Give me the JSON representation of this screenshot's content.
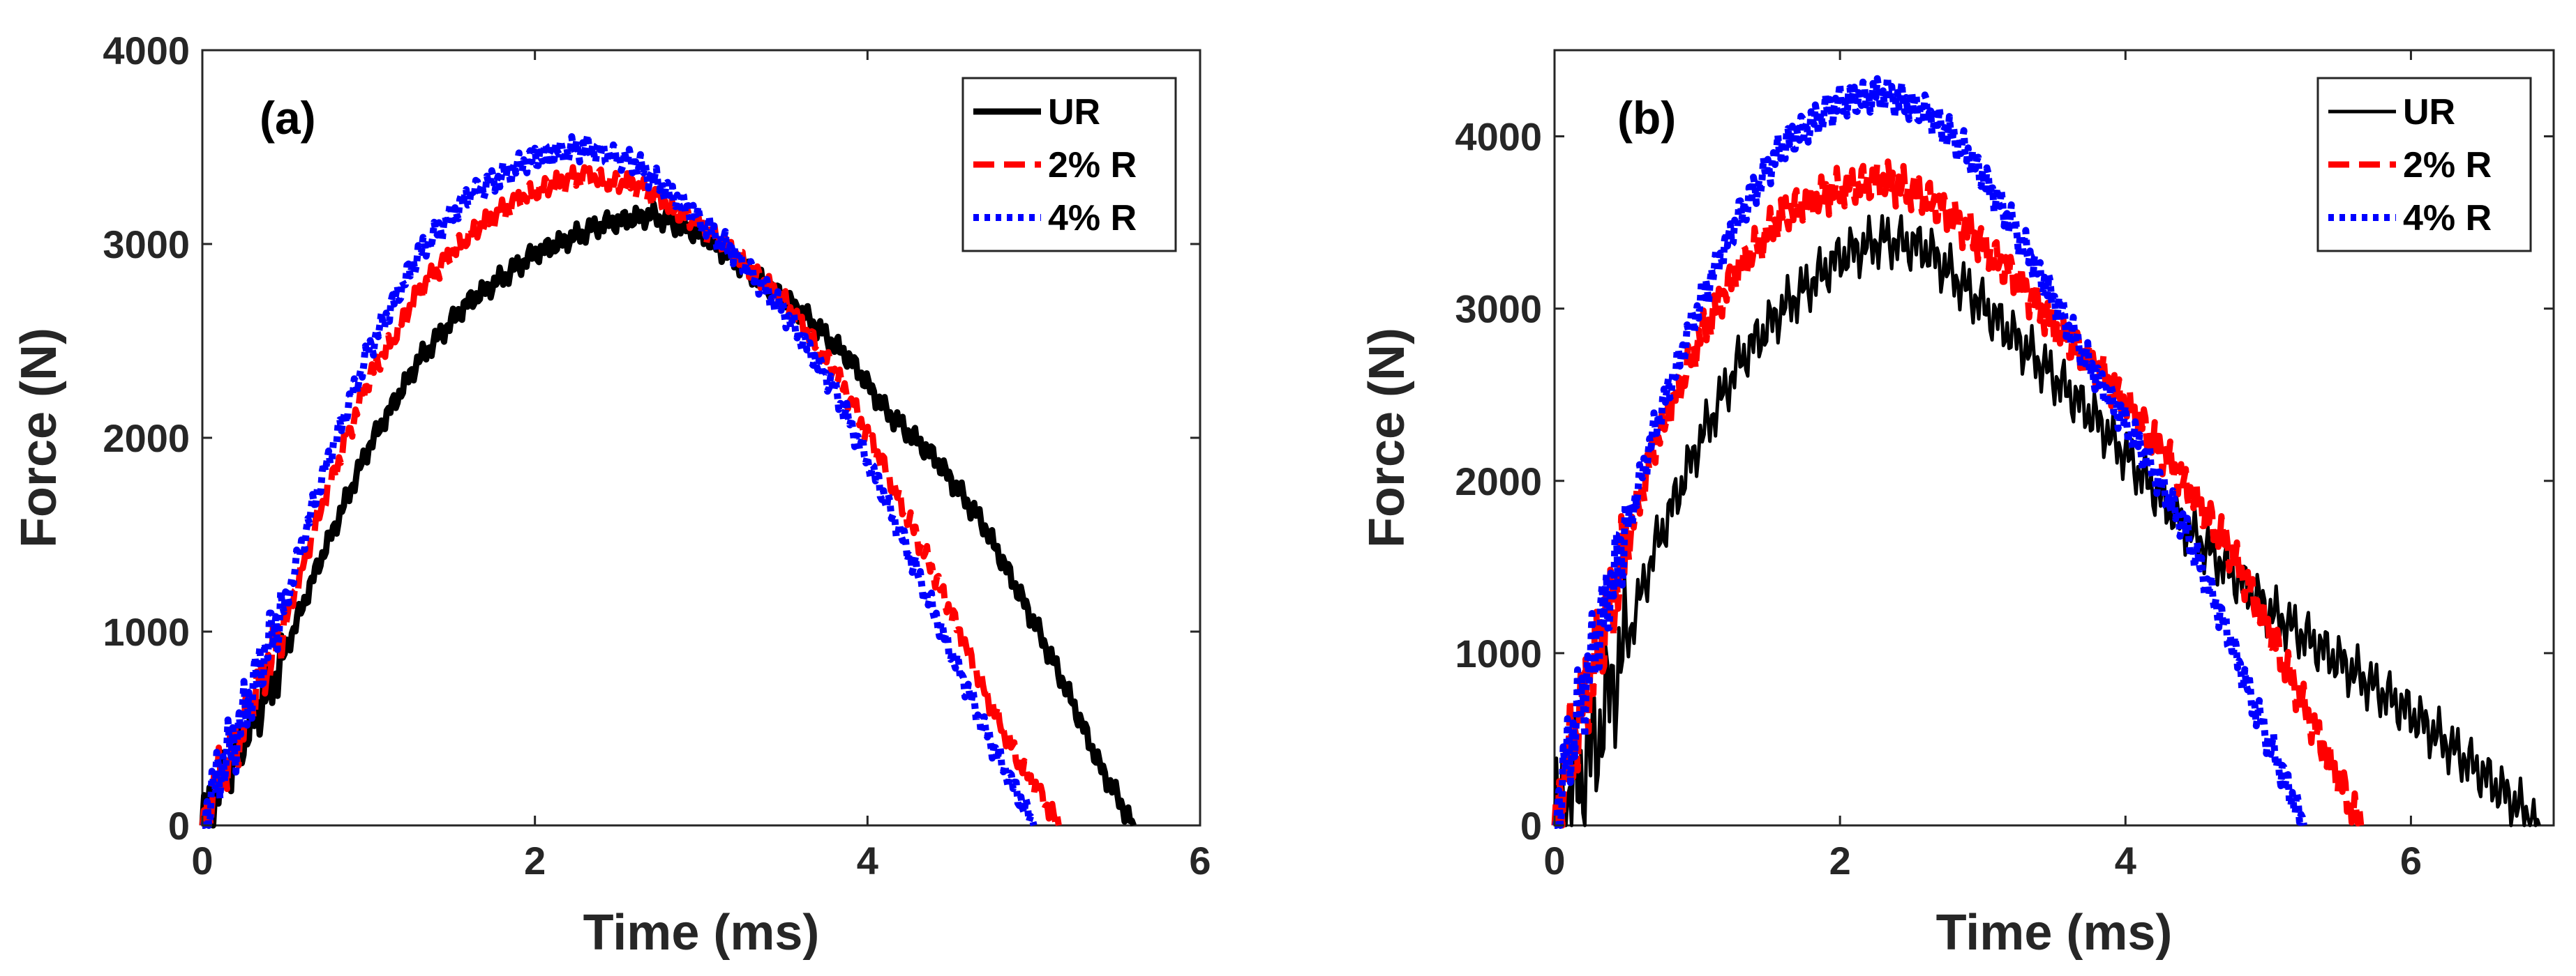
{
  "chart_data": [
    {
      "type": "line",
      "panel_label": "(a)",
      "xlabel": "Time (ms)",
      "ylabel": "Force (N)",
      "xlim": [
        0,
        6
      ],
      "ylim": [
        0,
        4000
      ],
      "xticks": [
        0,
        2,
        4,
        6
      ],
      "yticks": [
        0,
        1000,
        2000,
        3000,
        4000
      ],
      "grid": false,
      "legend_position": "top-right",
      "series": [
        {
          "name": "UR",
          "color": "#000000",
          "style": "solid",
          "width": 9,
          "noise": 40,
          "x": [
            0,
            0.1,
            0.2,
            0.3,
            0.4,
            0.5,
            0.7,
            1.0,
            1.3,
            1.6,
            2.0,
            2.4,
            2.7,
            3.0,
            3.3,
            3.6,
            3.9,
            4.1,
            4.4,
            4.7,
            5.0,
            5.2,
            5.4,
            5.6
          ],
          "y": [
            0,
            200,
            350,
            550,
            700,
            900,
            1350,
            1950,
            2400,
            2700,
            2950,
            3100,
            3150,
            3050,
            2850,
            2650,
            2400,
            2150,
            1900,
            1550,
            1050,
            700,
            300,
            0
          ]
        },
        {
          "name": "2% R",
          "color": "#ff0000",
          "style": "dashed",
          "width": 9,
          "noise": 40,
          "x": [
            0,
            0.1,
            0.2,
            0.3,
            0.4,
            0.5,
            0.7,
            1.0,
            1.3,
            1.6,
            2.0,
            2.3,
            2.6,
            2.9,
            3.2,
            3.5,
            3.8,
            4.1,
            4.4,
            4.7,
            4.9,
            5.15
          ],
          "y": [
            0,
            250,
            400,
            650,
            850,
            1050,
            1600,
            2300,
            2750,
            3050,
            3280,
            3350,
            3300,
            3150,
            2950,
            2700,
            2350,
            1850,
            1300,
            700,
            350,
            0
          ]
        },
        {
          "name": "4% R",
          "color": "#0000ff",
          "style": "dotted",
          "width": 10,
          "noise": 45,
          "x": [
            0,
            0.1,
            0.2,
            0.3,
            0.4,
            0.5,
            0.7,
            1.0,
            1.3,
            1.6,
            2.0,
            2.3,
            2.6,
            2.9,
            3.2,
            3.5,
            3.8,
            4.1,
            4.4,
            4.7,
            4.85,
            5.0
          ],
          "y": [
            0,
            280,
            450,
            700,
            950,
            1150,
            1750,
            2450,
            2950,
            3250,
            3450,
            3500,
            3420,
            3200,
            2950,
            2650,
            2250,
            1700,
            1100,
            500,
            250,
            0
          ]
        }
      ]
    },
    {
      "type": "line",
      "panel_label": "(b)",
      "xlabel": "Time (ms)",
      "ylabel": "Force (N)",
      "xlim": [
        0,
        7
      ],
      "ylim": [
        0,
        4500
      ],
      "xticks": [
        0,
        2,
        4,
        6
      ],
      "yticks": [
        0,
        1000,
        2000,
        3000,
        4000
      ],
      "grid": false,
      "legend_position": "top-right",
      "series": [
        {
          "name": "UR",
          "color": "#000000",
          "style": "solid",
          "width": 5,
          "noise": 110,
          "x": [
            0,
            0.1,
            0.2,
            0.3,
            0.4,
            0.5,
            0.7,
            1.0,
            1.3,
            1.6,
            2.0,
            2.3,
            2.6,
            2.9,
            3.2,
            3.5,
            3.8,
            4.1,
            4.4,
            4.7,
            5.0,
            5.5,
            6.0,
            6.5,
            6.9
          ],
          "y": [
            0,
            150,
            300,
            500,
            800,
            1050,
            1600,
            2200,
            2700,
            3000,
            3300,
            3400,
            3350,
            3100,
            2850,
            2600,
            2350,
            2050,
            1750,
            1500,
            1250,
            950,
            650,
            300,
            0
          ]
        },
        {
          "name": "2% R",
          "color": "#ff0000",
          "style": "dashed",
          "width": 9,
          "noise": 80,
          "x": [
            0,
            0.1,
            0.2,
            0.3,
            0.4,
            0.5,
            0.7,
            1.0,
            1.3,
            1.6,
            2.0,
            2.3,
            2.6,
            2.9,
            3.2,
            3.5,
            3.8,
            4.1,
            4.4,
            4.7,
            5.0,
            5.3,
            5.65
          ],
          "y": [
            0,
            400,
            700,
            1000,
            1300,
            1600,
            2200,
            2800,
            3250,
            3550,
            3700,
            3750,
            3650,
            3450,
            3200,
            2900,
            2650,
            2350,
            2000,
            1650,
            1150,
            600,
            0
          ]
        },
        {
          "name": "4% R",
          "color": "#0000ff",
          "style": "dotted",
          "width": 10,
          "noise": 70,
          "x": [
            0,
            0.1,
            0.2,
            0.3,
            0.4,
            0.5,
            0.7,
            1.0,
            1.3,
            1.6,
            2.0,
            2.3,
            2.6,
            2.9,
            3.2,
            3.5,
            3.8,
            4.1,
            4.4,
            4.7,
            4.9,
            5.1,
            5.25
          ],
          "y": [
            0,
            450,
            750,
            1100,
            1400,
            1700,
            2300,
            3000,
            3550,
            3950,
            4200,
            4250,
            4150,
            3900,
            3500,
            3050,
            2600,
            2200,
            1750,
            1150,
            700,
            300,
            0
          ]
        }
      ]
    }
  ]
}
